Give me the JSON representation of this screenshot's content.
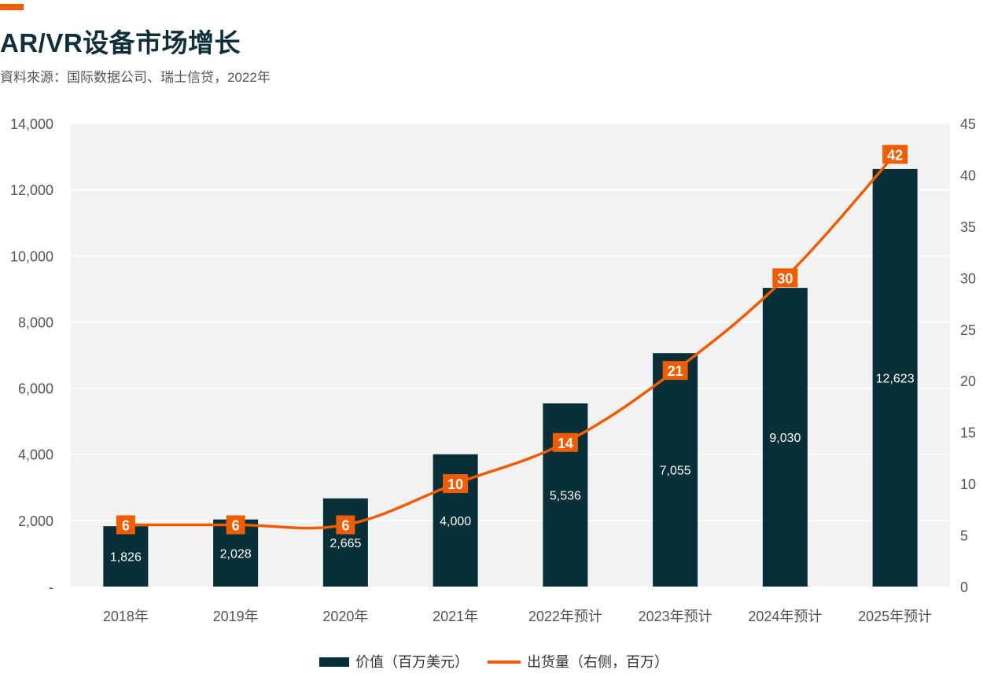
{
  "header": {
    "title": "AR/VR设备市场增长",
    "subtitle": "資料來源：国际数据公司、瑞士信贷，2022年"
  },
  "colors": {
    "accent": "#f25c00",
    "bar": "#062f38",
    "line": "#f25c00",
    "plot_bg": "#f2f2f2",
    "grid": "#ffffff"
  },
  "chart_data": {
    "type": "bar",
    "categories": [
      "2018年",
      "2019年",
      "2020年",
      "2021年",
      "2022年预计",
      "2023年预计",
      "2024年预计",
      "2025年预计"
    ],
    "series": [
      {
        "name": "价值（百万美元）",
        "type": "bar",
        "axis": "left",
        "values": [
          1826,
          2028,
          2665,
          4000,
          5536,
          7055,
          9030,
          12623
        ],
        "labels": [
          "1,826",
          "2,028",
          "2,665",
          "4,000",
          "5,536",
          "7,055",
          "9,030",
          "12,623"
        ]
      },
      {
        "name": "出货量（右侧，百万）",
        "type": "line",
        "axis": "right",
        "values": [
          6,
          6,
          6,
          10,
          14,
          21,
          30,
          42
        ],
        "labels": [
          "6",
          "6",
          "6",
          "10",
          "14",
          "21",
          "30",
          "42"
        ]
      }
    ],
    "y_left": {
      "lim": [
        0,
        14000
      ],
      "ticks": [
        0,
        2000,
        4000,
        6000,
        8000,
        10000,
        12000,
        14000
      ],
      "tick_labels": [
        "-",
        "2,000",
        "4,000",
        "6,000",
        "8,000",
        "10,000",
        "12,000",
        "14,000"
      ]
    },
    "y_right": {
      "lim": [
        0,
        45
      ],
      "ticks": [
        0,
        5,
        10,
        15,
        20,
        25,
        30,
        35,
        40,
        45
      ],
      "tick_labels": [
        "0",
        "5",
        "10",
        "15",
        "20",
        "25",
        "30",
        "35",
        "40",
        "45"
      ]
    },
    "grid": true,
    "legend_position": "bottom-center"
  }
}
